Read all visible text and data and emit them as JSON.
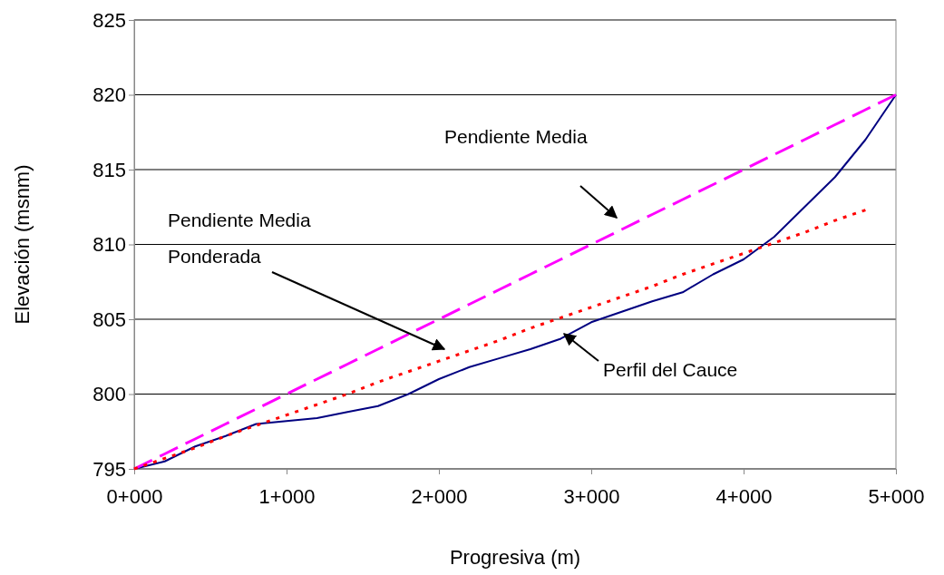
{
  "chart_data": {
    "type": "line",
    "xlabel": "Progresiva (m)",
    "ylabel": "Elevación (msnm)",
    "categories": [
      "0+000",
      null,
      null,
      null,
      null,
      "1+000",
      null,
      null,
      null,
      null,
      "2+000",
      null,
      null,
      null,
      null,
      "3+000",
      null,
      null,
      null,
      null,
      "4+000",
      null,
      null,
      null,
      null,
      "5+000"
    ],
    "ylim": [
      795,
      825
    ],
    "yticks": [
      795,
      800,
      805,
      810,
      815,
      820,
      825
    ],
    "grid": "y",
    "marker": "none",
    "series": [
      {
        "color": "#000080",
        "line_style": "solid",
        "values": [
          795,
          795.5,
          796.5,
          797.2,
          798,
          798.2,
          798.4,
          798.8,
          799.2,
          800,
          801,
          801.8,
          802.4,
          803,
          803.7,
          804.8,
          805.5,
          806.2,
          806.8,
          808,
          809,
          810.5,
          812.5,
          814.5,
          817,
          820
        ]
      },
      {
        "color": "#ff00ff",
        "line_style": "dashed",
        "values": [
          795,
          796,
          797,
          798,
          799,
          800,
          801,
          802,
          803,
          804,
          805,
          806,
          807,
          808,
          809,
          810,
          811,
          812,
          813,
          814,
          815,
          816,
          817,
          818,
          819,
          820
        ]
      },
      {
        "color": "#ff0000",
        "line_style": "dotted",
        "values": [
          795,
          795.7,
          796.4,
          797.2,
          797.9,
          798.6,
          799.3,
          800,
          800.8,
          801.5,
          802.2,
          802.9,
          803.6,
          804.4,
          805.1,
          805.8,
          806.5,
          807.2,
          808,
          808.7,
          809.4,
          810.1,
          810.8,
          811.6,
          812.3,
          null
        ]
      }
    ],
    "annotations": [
      "Pendiente Media",
      "Pendiente Media\nPonderada",
      "Perfil del Cauce"
    ]
  }
}
